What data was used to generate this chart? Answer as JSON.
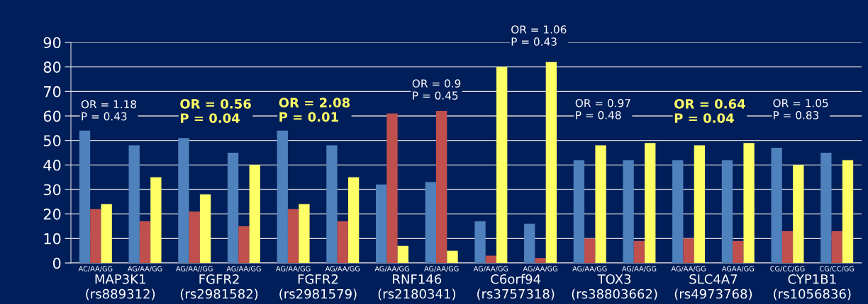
{
  "chart_data": {
    "type": "bar",
    "categories": [
      "AC/AA/GG",
      "AG/AA/GG",
      "AG/AA//GG",
      "AG/AA/GG",
      "AG/AA/GG",
      "AG/AA/GG",
      "AG/AA/GG",
      "AG/AA/GG",
      "AG/AA/GG",
      "AG/AA/GG",
      "AG/AA/GG",
      "AG/AA/GG",
      "AG/AA/GG",
      "AGAA/GG",
      "CG/CC/GG",
      "CG/CC/GG"
    ],
    "series": [
      {
        "color": "#4f81bd",
        "values": [
          54,
          48,
          51,
          45,
          54,
          48,
          32,
          33,
          17,
          16,
          42,
          42,
          42,
          42,
          47,
          45
        ]
      },
      {
        "color": "#c0504d",
        "values": [
          22,
          17,
          21,
          15,
          22,
          17,
          61,
          62,
          3,
          2,
          10,
          9,
          10,
          9,
          13,
          13
        ]
      },
      {
        "color": "#ffff66",
        "values": [
          24,
          35,
          28,
          40,
          24,
          35,
          7,
          5,
          80,
          82,
          48,
          49,
          48,
          49,
          40,
          42
        ]
      }
    ],
    "ylim": [
      0,
      90
    ],
    "yticks": [
      0,
      10,
      20,
      30,
      40,
      50,
      60,
      70,
      80,
      90
    ],
    "grid": "y",
    "annotations": [
      "MAP3K1\n(rs889312)",
      "FGFR2\n(rs2981582)",
      "FGFR2\n(rs2981579)",
      "RNF146\n(rs2180341)",
      "C6orf94\n(rs3757318)",
      "TOX3\n(rs38803662)",
      "SLC4A7\n(rs4973768)",
      "CYP1B1\n(rs1056836)",
      "OR = 1.18\nP = 0.43",
      "OR = 0.56\nP = 0.04",
      "OR = 2.08\nP = 0.01",
      "OR = 0.9\nP = 0.45",
      "OR = 1.06\nP = 0.43",
      "OR = 0.97\nP = 0.48",
      "OR = 0.64\nP = 0.04",
      "OR = 1.05\nP = 0.83"
    ]
  }
}
